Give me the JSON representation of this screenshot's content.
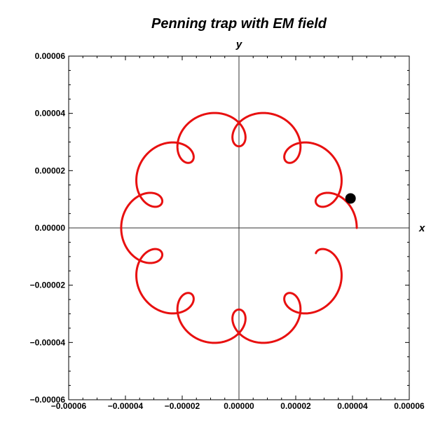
{
  "chart_data": {
    "type": "line",
    "title": "Penning trap with EM field",
    "xlabel": "x",
    "ylabel": "y",
    "xlim": [
      -6e-05,
      6e-05
    ],
    "ylim": [
      -6e-05,
      6e-05
    ],
    "x_ticks": [
      "−0.00006",
      "−0.00004",
      "−0.00002",
      "0.00000",
      "0.00002",
      "0.00004",
      "0.00006"
    ],
    "y_ticks": [
      "−0.00006",
      "−0.00004",
      "−0.00002",
      "0.00000",
      "0.00002",
      "0.00004",
      "0.00006"
    ],
    "grid": false,
    "series": [
      {
        "color": "#e81010",
        "model": {
          "type": "epicycloid",
          "radius_large": 3.5e-05,
          "radius_small": 6.5e-06,
          "lobes": 10,
          "t_start": 0,
          "t_end": 0.95
        }
      }
    ],
    "marker": {
      "x": 3.93e-05,
      "y": 1.03e-05,
      "color": "#000000"
    }
  }
}
